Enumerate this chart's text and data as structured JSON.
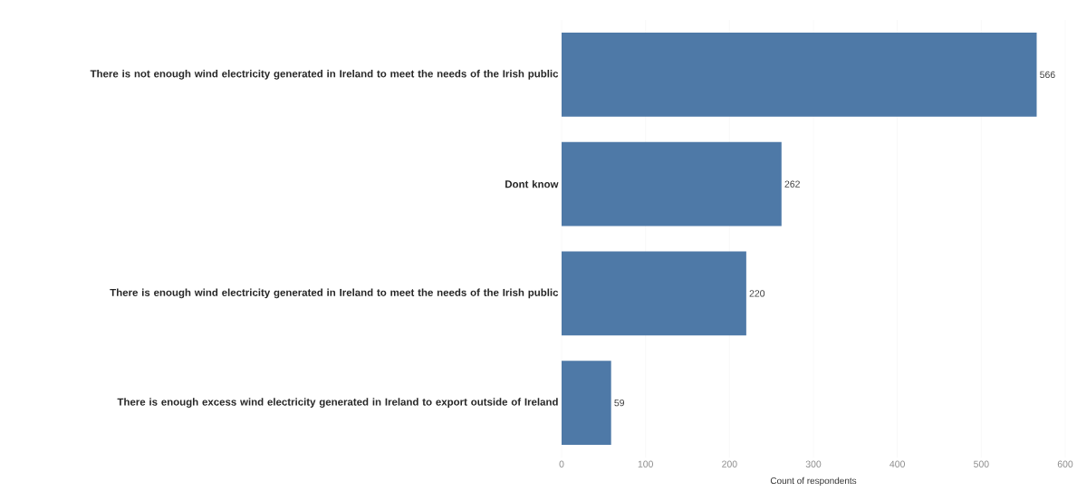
{
  "chart_data": {
    "type": "bar",
    "orientation": "horizontal",
    "xlabel": "Count of respondents",
    "categories": [
      "There is not enough wind electricity generated in Ireland to meet the needs of the Irish public",
      "Dont know",
      "There is enough wind electricity generated in Ireland to meet the needs of the Irish public",
      "There is enough excess wind electricity generated in Ireland to export outside of Ireland"
    ],
    "values": [
      566,
      262,
      220,
      59
    ],
    "color": "#4e79a7",
    "data_labels": true,
    "xlim": [
      0,
      600
    ],
    "xticks": [
      0,
      100,
      200,
      300,
      400,
      500,
      600
    ],
    "grid": "x"
  }
}
